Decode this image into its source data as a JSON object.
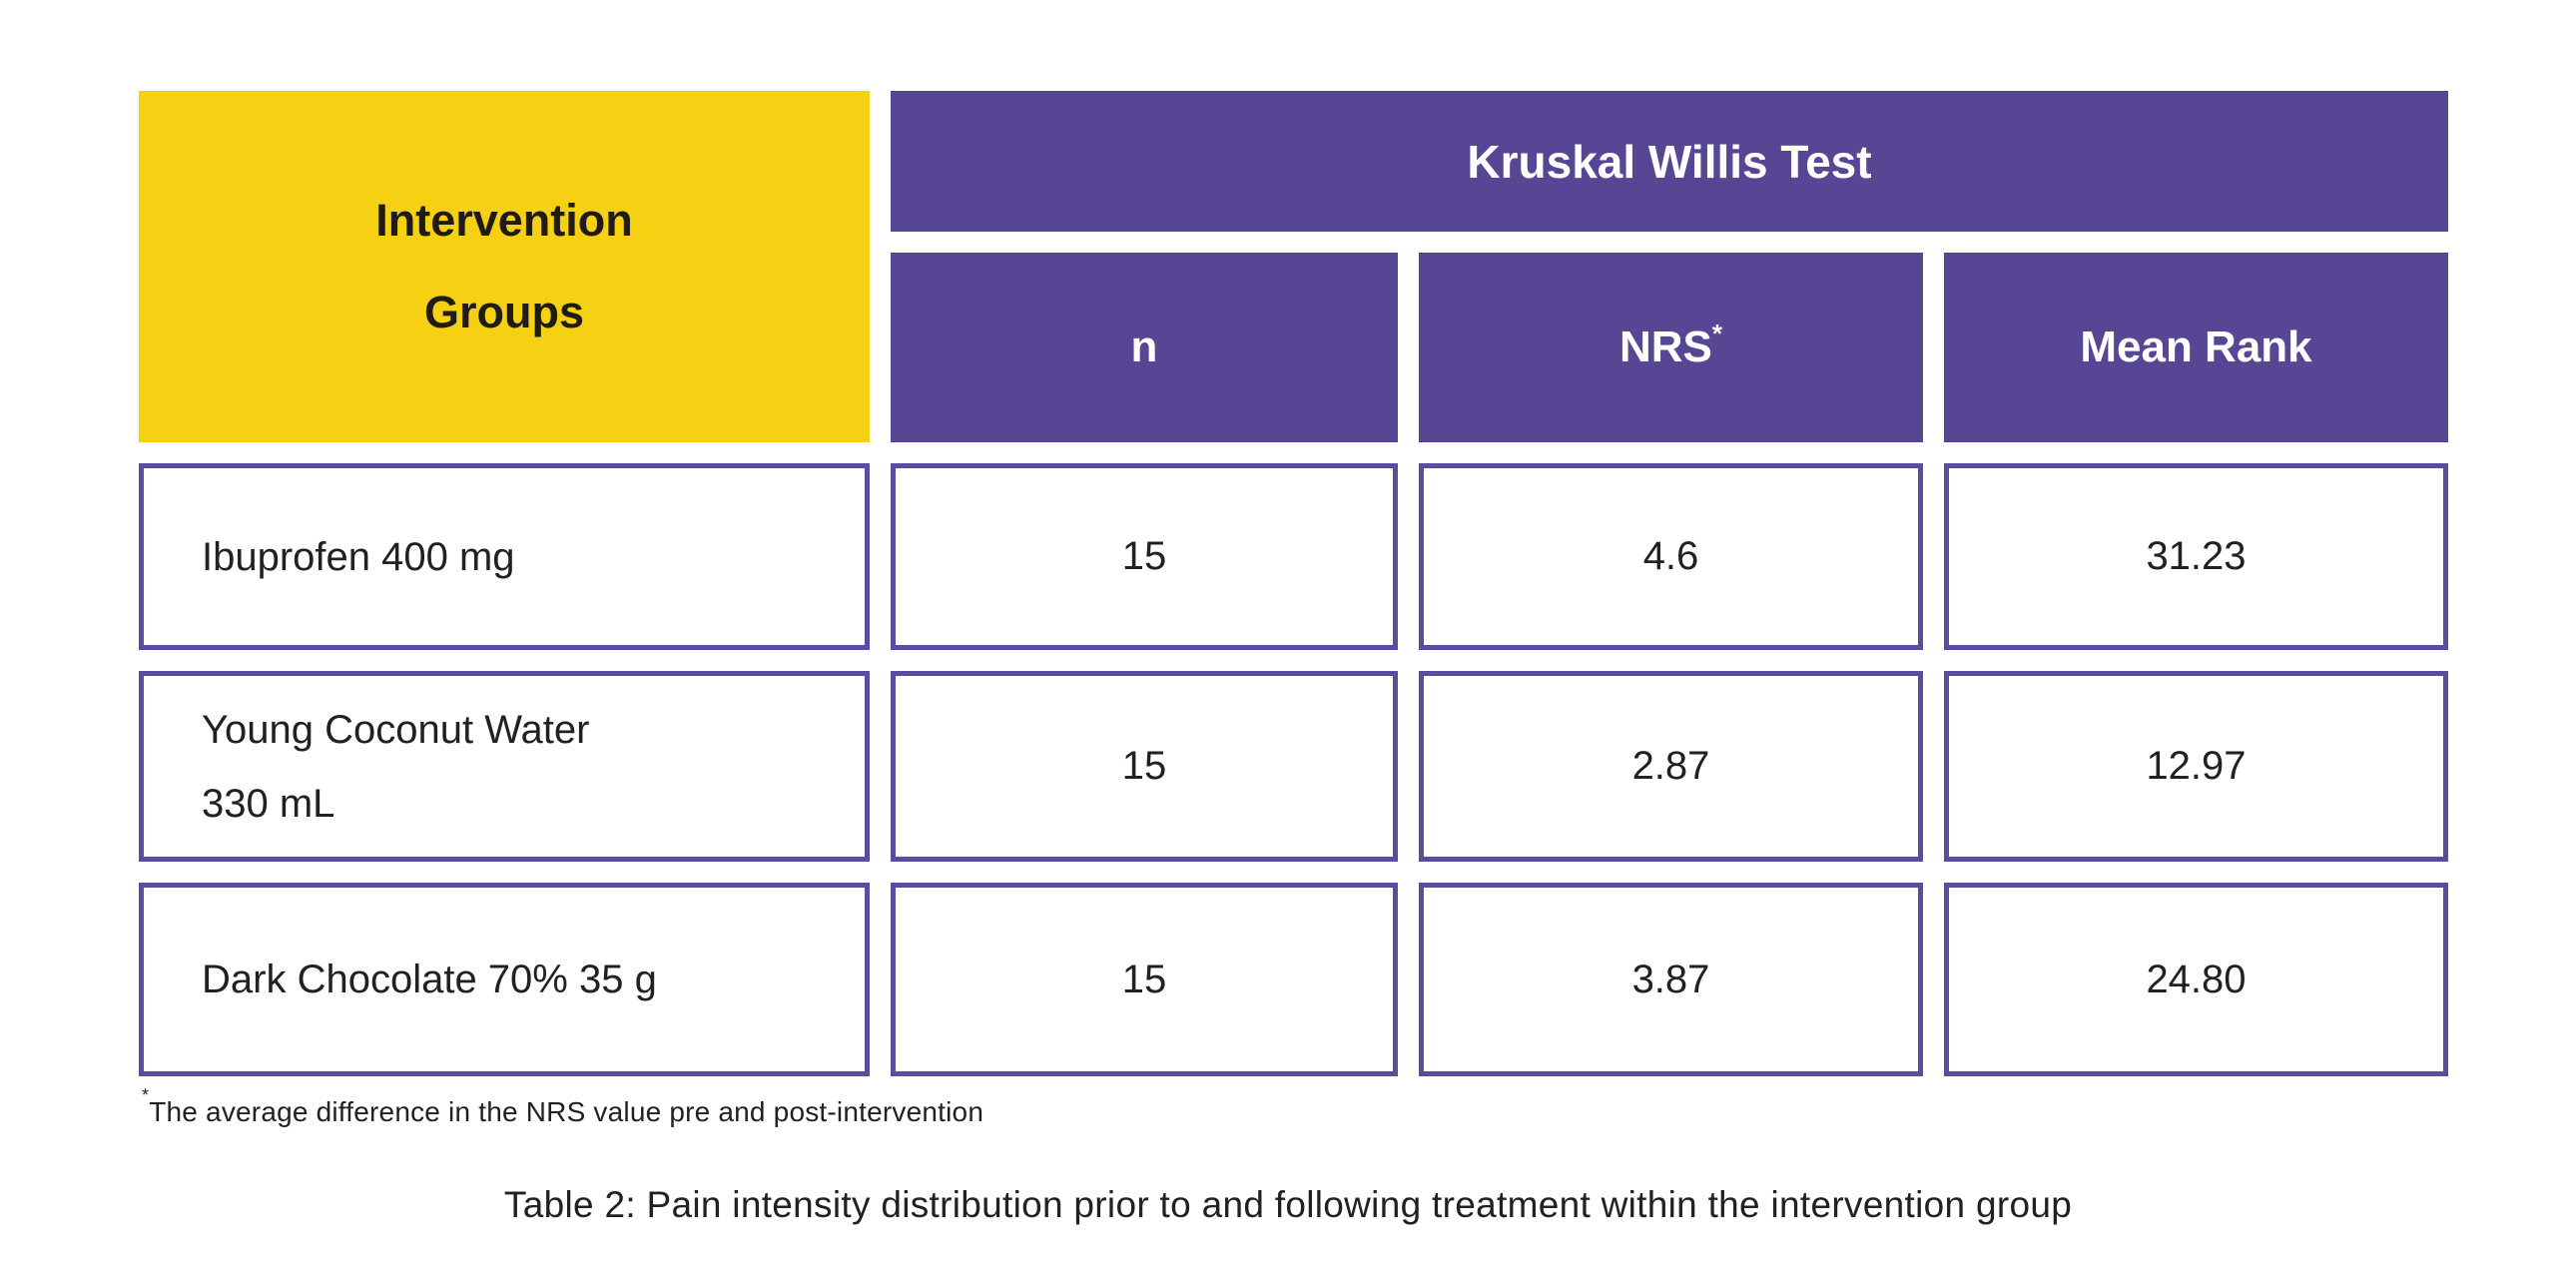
{
  "colors": {
    "accent_yellow": "#F6D013",
    "accent_purple": "#564694",
    "cell_border": "#5B4C9E",
    "text_dark": "#1E1C14",
    "text_light": "#FFFFFF",
    "body_text": "#212121",
    "page_bg": "#FFFFFF"
  },
  "table": {
    "corner_label": "Intervention\nGroups",
    "group_header": "Kruskal Willis Test",
    "columns": [
      {
        "label": "n",
        "marker": ""
      },
      {
        "label": "NRS",
        "marker": "*"
      },
      {
        "label": "Mean Rank",
        "marker": ""
      }
    ],
    "rows": [
      {
        "group": "Ibuprofen 400 mg",
        "n": "15",
        "nrs": "4.6",
        "mean_rank": "31.23"
      },
      {
        "group": "Young Coconut Water\n330 mL",
        "n": "15",
        "nrs": "2.87",
        "mean_rank": "12.97"
      },
      {
        "group": "Dark Chocolate 70% 35 g",
        "n": "15",
        "nrs": "3.87",
        "mean_rank": "24.80"
      }
    ],
    "footnote_marker": "*",
    "footnote_text": "The average difference in the NRS value pre and post-intervention",
    "caption": "Table 2: Pain intensity distribution prior to and following treatment within the intervention group"
  },
  "chart_data": {
    "type": "table",
    "title": "Kruskal Willis Test",
    "row_header_label": "Intervention Groups",
    "columns": [
      "n",
      "NRS*",
      "Mean Rank"
    ],
    "rows": [
      [
        "Ibuprofen 400 mg",
        15,
        4.6,
        31.23
      ],
      [
        "Young Coconut Water 330 mL",
        15,
        2.87,
        12.97
      ],
      [
        "Dark Chocolate 70% 35 g",
        15,
        3.87,
        24.8
      ]
    ],
    "footnote": "*The average difference in the NRS value pre and post-intervention",
    "caption": "Table 2: Pain intensity distribution prior to and following treatment within the intervention group",
    "layout_hints": {
      "row_header_bg": "#F6D013",
      "column_header_bg": "#564694",
      "data_cell_border": "#5B4C9E",
      "grid": "separated-cells"
    }
  }
}
